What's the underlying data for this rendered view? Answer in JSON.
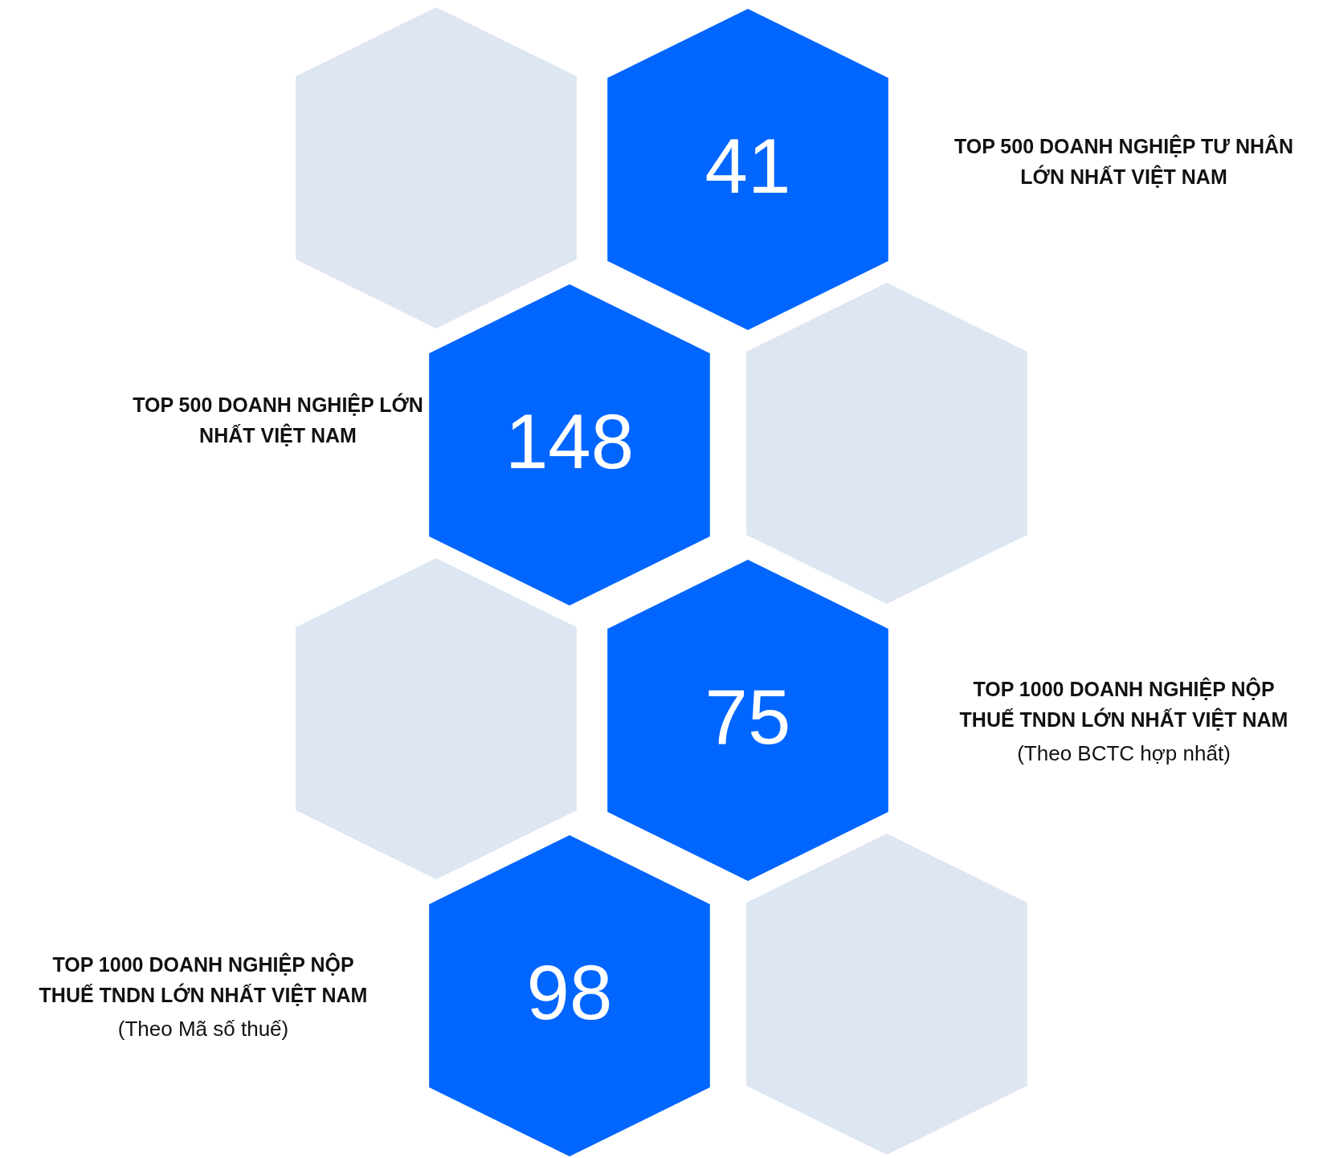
{
  "chart_data": {
    "type": "other",
    "categories": [
      "TOP 500 DOANH NGHIỆP TƯ NHÂN LỚN NHẤT VIỆT NAM",
      "TOP 500 DOANH NGHIỆP LỚN NHẤT VIỆT NAM",
      "TOP 1000 DOANH NGHIỆP NỘP THUẾ TNDN LỚN NHẤT VIỆT NAM",
      "TOP 1000 DOANH NGHIỆP NỘP THUẾ TNDN LỚN NHẤT VIỆT NAM"
    ],
    "values": [
      41,
      148,
      75,
      98
    ],
    "color": "#0066ff",
    "data_labels": true,
    "annotations": [
      {
        "text": "(Theo BCTC hợp nhất)",
        "x": "TOP 1000 DOANH NGHIỆP NỘP THUẾ TNDN LỚN NHẤT VIỆT NAM"
      },
      {
        "text": "(Theo Mã số thuế)",
        "x": "TOP 1000 DOANH NGHIỆP NỘP THUẾ TNDN LỚN NHẤT VIỆT NAM"
      }
    ]
  }
}
